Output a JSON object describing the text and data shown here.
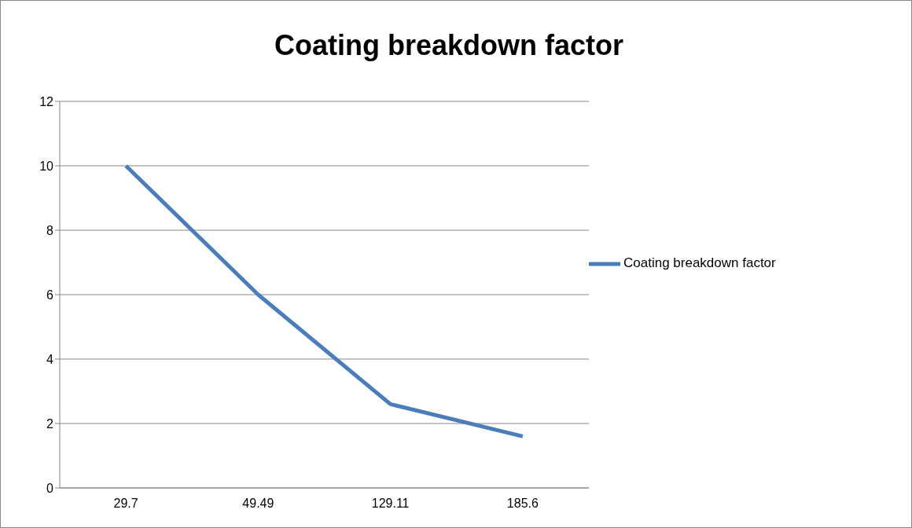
{
  "chart_data": {
    "type": "line",
    "title": "Coating breakdown factor",
    "categories": [
      "29.7",
      "49.49",
      "129.11",
      "185.6"
    ],
    "series": [
      {
        "name": "Coating breakdown factor",
        "color": "#4a7ebb",
        "values": [
          10,
          6,
          2.6,
          1.6
        ]
      }
    ],
    "ylim": [
      0,
      12
    ],
    "yticks": [
      0,
      2,
      4,
      6,
      8,
      10,
      12
    ],
    "grid": "y",
    "legend": "right",
    "marker": "none"
  }
}
